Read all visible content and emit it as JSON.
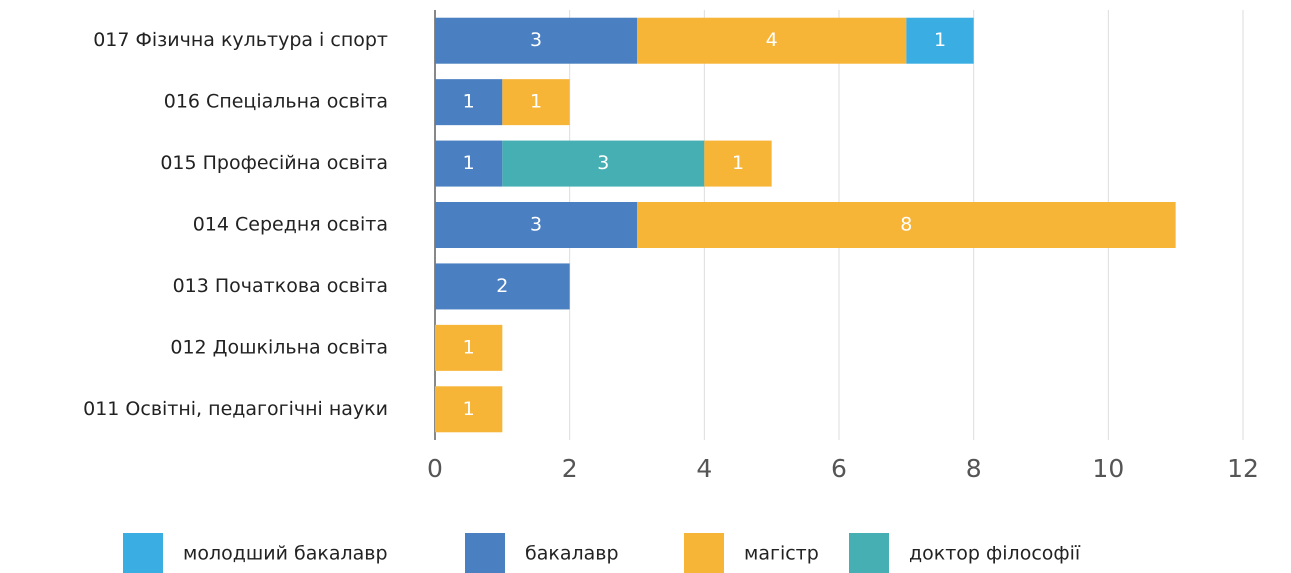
{
  "chart_data": {
    "type": "stacked-barh",
    "categories": [
      "017 Фізична культура і спорт",
      "016 Спеціальна освіта",
      "015 Професійна освіта",
      "014 Середня освіта",
      "013 Початкова освіта",
      "012 Дошкільна освіта",
      "011 Освітні, педагогічні науки"
    ],
    "series": [
      {
        "name": "молодший бакалавр",
        "color": "#3aaee3",
        "values": [
          1,
          null,
          null,
          null,
          null,
          null,
          null
        ]
      },
      {
        "name": "бакалавр",
        "color": "#4a7fc1",
        "values": [
          3,
          1,
          1,
          3,
          2,
          null,
          null
        ]
      },
      {
        "name": "магістр",
        "color": "#f7b538",
        "values": [
          4,
          1,
          1,
          8,
          null,
          1,
          1
        ]
      },
      {
        "name": "доктор філософії",
        "color": "#45afb3",
        "values": [
          null,
          null,
          3,
          null,
          null,
          null,
          null
        ]
      }
    ],
    "xlim": [
      0,
      12
    ],
    "xticks": [
      0,
      2,
      4,
      6,
      8,
      10,
      12
    ],
    "grid": true,
    "legend": "bottom"
  }
}
